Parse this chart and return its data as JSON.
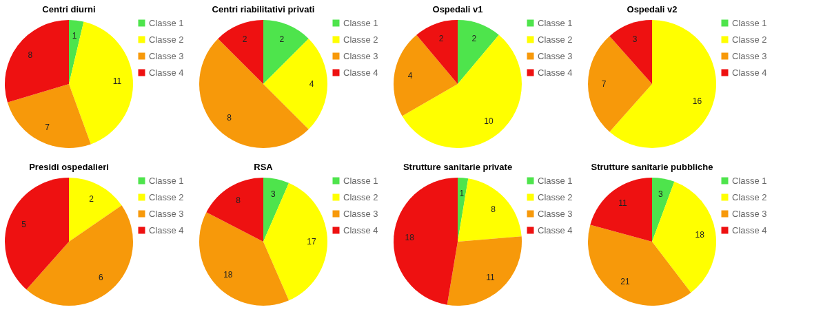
{
  "chart_data": [
    {
      "type": "pie",
      "title": "Centri diurni",
      "categories": [
        "Classe 1",
        "Classe 2",
        "Classe 3",
        "Classe 4"
      ],
      "values": [
        1,
        11,
        7,
        8
      ],
      "colors": [
        "#4ee44c",
        "#ffff00",
        "#f7990a",
        "#ee1111"
      ],
      "data_labels": true,
      "legend": "right"
    },
    {
      "type": "pie",
      "title": "Centri riabilitativi privati",
      "categories": [
        "Classe 1",
        "Classe 2",
        "Classe 3",
        "Classe 4"
      ],
      "values": [
        2,
        4,
        8,
        2
      ],
      "colors": [
        "#4ee44c",
        "#ffff00",
        "#f7990a",
        "#ee1111"
      ],
      "data_labels": true,
      "legend": "right"
    },
    {
      "type": "pie",
      "title": "Ospedali v1",
      "categories": [
        "Classe 1",
        "Classe 2",
        "Classe 3",
        "Classe 4"
      ],
      "values": [
        2,
        10,
        4,
        2
      ],
      "colors": [
        "#4ee44c",
        "#ffff00",
        "#f7990a",
        "#ee1111"
      ],
      "data_labels": true,
      "legend": "right"
    },
    {
      "type": "pie",
      "title": "Ospedali v2",
      "categories": [
        "Classe 1",
        "Classe 2",
        "Classe 3",
        "Classe 4"
      ],
      "values": [
        0,
        16,
        7,
        3
      ],
      "colors": [
        "#4ee44c",
        "#ffff00",
        "#f7990a",
        "#ee1111"
      ],
      "data_labels": true,
      "legend": "right"
    },
    {
      "type": "pie",
      "title": "Presidi ospedalieri",
      "categories": [
        "Classe 1",
        "Classe 2",
        "Classe 3",
        "Classe 4"
      ],
      "values": [
        0,
        2,
        6,
        5
      ],
      "colors": [
        "#4ee44c",
        "#ffff00",
        "#f7990a",
        "#ee1111"
      ],
      "data_labels": true,
      "legend": "right"
    },
    {
      "type": "pie",
      "title": "RSA",
      "categories": [
        "Classe 1",
        "Classe 2",
        "Classe 3",
        "Classe 4"
      ],
      "values": [
        3,
        17,
        18,
        8
      ],
      "colors": [
        "#4ee44c",
        "#ffff00",
        "#f7990a",
        "#ee1111"
      ],
      "data_labels": true,
      "legend": "right"
    },
    {
      "type": "pie",
      "title": "Strutture sanitarie private",
      "categories": [
        "Classe 1",
        "Classe 2",
        "Classe 3",
        "Classe 4"
      ],
      "values": [
        1,
        8,
        11,
        18
      ],
      "colors": [
        "#4ee44c",
        "#ffff00",
        "#f7990a",
        "#ee1111"
      ],
      "data_labels": true,
      "legend": "right"
    },
    {
      "type": "pie",
      "title": "Strutture sanitarie pubbliche",
      "categories": [
        "Classe 1",
        "Classe 2",
        "Classe 3",
        "Classe 4"
      ],
      "values": [
        3,
        18,
        21,
        11
      ],
      "colors": [
        "#4ee44c",
        "#ffff00",
        "#f7990a",
        "#ee1111"
      ],
      "data_labels": true,
      "legend": "right"
    }
  ]
}
